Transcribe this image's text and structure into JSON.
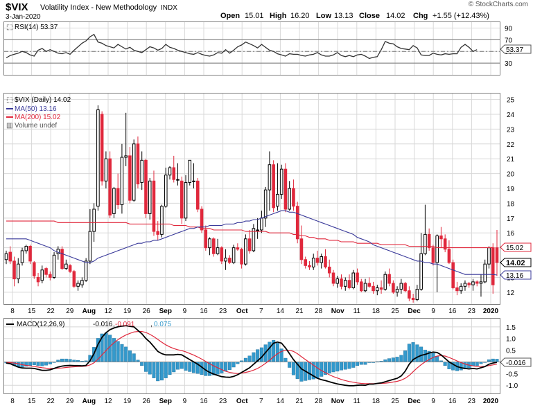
{
  "header": {
    "symbol": "$VIX",
    "name": "Volatility Index - New Methodology",
    "exchange": "INDX",
    "date": "3-Jan-2020",
    "copyright": "© StockCharts.com",
    "open_label": "Open",
    "open": "15.01",
    "high_label": "High",
    "high": "16.20",
    "low_label": "Low",
    "low": "13.13",
    "close_label": "Close",
    "close": "14.02",
    "chg_label": "Chg",
    "chg": "+1.55 (+12.43%)"
  },
  "x_axis": {
    "labels": [
      "8",
      "15",
      "22",
      "29",
      "Aug",
      "12",
      "19",
      "26",
      "Sep",
      "9",
      "16",
      "23",
      "Oct",
      "7",
      "14",
      "21",
      "28",
      "Nov",
      "11",
      "18",
      "25",
      "Dec",
      "9",
      "16",
      "23",
      "2020"
    ],
    "bold_labels": [
      "Aug",
      "Sep",
      "Oct",
      "Nov",
      "Dec",
      "2020"
    ]
  },
  "rsi": {
    "legend": "RSI(14) 53.37",
    "ticks": [
      90,
      70,
      50,
      30
    ],
    "value_badge": "53.37",
    "ylim": [
      10,
      100
    ],
    "color": "#333333",
    "values": [
      39,
      43,
      45,
      47,
      50,
      48,
      44,
      42,
      52,
      55,
      50,
      53,
      50,
      47,
      46,
      48,
      45,
      52,
      58,
      64,
      68,
      75,
      79,
      66,
      64,
      60,
      58,
      56,
      62,
      58,
      54,
      57,
      52,
      50,
      48,
      53,
      58,
      56,
      52,
      55,
      62,
      57,
      55,
      52,
      50,
      48,
      46,
      45,
      48,
      45,
      43,
      42,
      44,
      48,
      47,
      53,
      47,
      52,
      58,
      61,
      66,
      63,
      60,
      56,
      62,
      57,
      52,
      50,
      46,
      44,
      42,
      46,
      45,
      45,
      43,
      42,
      44,
      45,
      48,
      44,
      42,
      42,
      44,
      48,
      43,
      41,
      43,
      41,
      44,
      45,
      42,
      38,
      40,
      41,
      53,
      67,
      64,
      63,
      58,
      55,
      54,
      53,
      60,
      56,
      44,
      43,
      43,
      47,
      45,
      44,
      46,
      45,
      46,
      46,
      57,
      62,
      57,
      50,
      53
    ]
  },
  "price": {
    "legend_main": "$VIX (Daily) 14.02",
    "legend_ma50": "MA(50) 13.16",
    "legend_ma200": "MA(200) 15.02",
    "legend_volume": "Volume undef",
    "ticks": [
      25,
      24,
      23,
      22,
      21,
      20,
      19,
      18,
      17,
      16,
      15,
      14,
      13,
      12
    ],
    "badge_ma200": "15.02",
    "badge_close": "14.02",
    "badge_ma50": "13.16",
    "ylim": [
      11.2,
      25.4
    ],
    "up_color": "#000000",
    "down_color": "#e0283c",
    "ma50_color": "#3a3a9a",
    "ma200_color": "#e0283c"
  },
  "macd": {
    "legend_label": "MACD(12,26,9)",
    "legend_macd": "-0.016",
    "legend_signal": "-0.091",
    "legend_hist": "0.075",
    "ticks": [
      "1.5",
      "1.0",
      "0.5",
      "0.0",
      "-0.5",
      "-1.0"
    ],
    "tick_values": [
      1.5,
      1.0,
      0.5,
      0.0,
      -0.5,
      -1.0
    ],
    "value_badge": "-0.016",
    "ylim": [
      -1.35,
      1.85
    ],
    "macd_color": "#000000",
    "signal_color": "#e0283c",
    "hist_color": "#3399cc"
  },
  "chart_data": {
    "type": "candlestick",
    "title": "$VIX Volatility Index - New Methodology INDX",
    "date_range": [
      "2019-07-03",
      "2020-01-03"
    ],
    "ohlc": [
      [
        14.2,
        14.8,
        13.9,
        14.6
      ],
      [
        14.7,
        15.1,
        13.9,
        14.1
      ],
      [
        14.1,
        14.4,
        12.4,
        12.9
      ],
      [
        12.9,
        14.3,
        12.6,
        13.9
      ],
      [
        14.0,
        15.0,
        13.8,
        14.8
      ],
      [
        14.8,
        15.2,
        14.6,
        15.1
      ],
      [
        15.1,
        15.2,
        13.9,
        14.1
      ],
      [
        14.0,
        14.1,
        12.9,
        13.1
      ],
      [
        13.0,
        13.3,
        12.4,
        12.7
      ],
      [
        12.8,
        13.8,
        12.6,
        13.5
      ],
      [
        13.6,
        13.7,
        13.0,
        13.2
      ],
      [
        13.2,
        13.4,
        12.8,
        13.0
      ],
      [
        13.0,
        14.7,
        12.9,
        14.5
      ],
      [
        14.6,
        15.1,
        14.2,
        14.9
      ],
      [
        14.9,
        15.1,
        13.5,
        13.6
      ],
      [
        13.6,
        14.2,
        13.5,
        13.9
      ],
      [
        13.8,
        13.9,
        13.3,
        13.4
      ],
      [
        13.4,
        13.5,
        12.3,
        12.4
      ],
      [
        12.4,
        12.8,
        12.1,
        12.6
      ],
      [
        12.5,
        13.0,
        12.3,
        12.8
      ],
      [
        12.8,
        14.3,
        12.7,
        14.1
      ],
      [
        14.1,
        17.6,
        13.9,
        16.1
      ],
      [
        16.1,
        18.0,
        15.4,
        17.6
      ],
      [
        17.8,
        24.6,
        17.5,
        24.3
      ],
      [
        24.0,
        24.2,
        19.2,
        19.5
      ],
      [
        19.5,
        21.5,
        19.0,
        21.0
      ],
      [
        21.0,
        21.5,
        17.0,
        17.2
      ],
      [
        17.3,
        19.1,
        17.0,
        19.0
      ],
      [
        19.0,
        20.0,
        17.6,
        17.9
      ],
      [
        17.9,
        22.0,
        17.3,
        21.1
      ],
      [
        21.1,
        24.1,
        20.5,
        21.2
      ],
      [
        21.2,
        21.8,
        18.0,
        18.2
      ],
      [
        18.2,
        22.3,
        18.1,
        22.0
      ],
      [
        22.0,
        22.5,
        19.0,
        19.3
      ],
      [
        19.4,
        21.5,
        18.9,
        20.9
      ],
      [
        20.9,
        21.0,
        17.0,
        17.3
      ],
      [
        17.3,
        19.7,
        16.9,
        19.5
      ],
      [
        19.5,
        20.2,
        15.8,
        16.1
      ],
      [
        16.1,
        16.8,
        15.5,
        15.9
      ],
      [
        15.9,
        17.9,
        15.7,
        17.8
      ],
      [
        17.8,
        20.4,
        17.7,
        19.9
      ],
      [
        19.9,
        20.5,
        19.6,
        20.4
      ],
      [
        20.4,
        21.2,
        19.4,
        19.6
      ],
      [
        19.6,
        20.7,
        19.2,
        19.6
      ],
      [
        19.5,
        19.8,
        16.6,
        17.0
      ],
      [
        17.0,
        19.9,
        16.8,
        19.4
      ],
      [
        19.4,
        20.9,
        19.2,
        20.9
      ],
      [
        19.5,
        20.7,
        19.0,
        19.5
      ],
      [
        19.5,
        19.7,
        17.4,
        17.6
      ],
      [
        17.6,
        17.8,
        16.0,
        16.2
      ],
      [
        16.2,
        16.5,
        14.8,
        15.0
      ],
      [
        15.0,
        15.7,
        14.5,
        15.6
      ],
      [
        15.6,
        15.7,
        14.4,
        14.6
      ],
      [
        14.6,
        15.6,
        14.5,
        15.0
      ],
      [
        15.0,
        15.1,
        13.9,
        14.1
      ],
      [
        14.1,
        14.9,
        13.5,
        14.3
      ],
      [
        14.3,
        14.5,
        13.9,
        14.0
      ],
      [
        14.0,
        15.2,
        13.9,
        15.0
      ],
      [
        15.0,
        15.3,
        14.8,
        14.9
      ],
      [
        14.9,
        15.0,
        13.6,
        13.9
      ],
      [
        13.9,
        15.9,
        13.8,
        15.6
      ],
      [
        15.6,
        16.2,
        14.6,
        14.8
      ],
      [
        14.8,
        16.6,
        14.7,
        16.3
      ],
      [
        16.2,
        17.0,
        15.6,
        16.2
      ],
      [
        16.2,
        17.5,
        16.0,
        17.0
      ],
      [
        17.0,
        19.1,
        16.4,
        18.9
      ],
      [
        18.9,
        21.5,
        17.5,
        20.6
      ],
      [
        20.6,
        20.9,
        17.4,
        17.7
      ],
      [
        17.8,
        20.7,
        17.5,
        18.6
      ],
      [
        18.6,
        20.6,
        18.3,
        20.3
      ],
      [
        20.3,
        20.7,
        17.4,
        17.6
      ],
      [
        17.6,
        19.5,
        17.5,
        19.0
      ],
      [
        19.0,
        19.6,
        17.5,
        17.8
      ],
      [
        17.8,
        18.1,
        15.3,
        15.6
      ],
      [
        15.6,
        16.5,
        13.9,
        14.2
      ],
      [
        14.2,
        14.4,
        13.6,
        13.8
      ],
      [
        13.8,
        14.1,
        13.5,
        13.7
      ],
      [
        13.7,
        14.6,
        13.5,
        14.3
      ],
      [
        14.3,
        14.8,
        13.8,
        14.0
      ],
      [
        14.0,
        14.6,
        13.6,
        14.4
      ],
      [
        14.4,
        14.9,
        13.6,
        13.7
      ],
      [
        13.7,
        14.2,
        13.0,
        13.3
      ],
      [
        13.3,
        13.5,
        12.4,
        12.6
      ],
      [
        12.6,
        13.1,
        12.3,
        12.9
      ],
      [
        12.9,
        13.2,
        12.2,
        12.4
      ],
      [
        12.4,
        13.0,
        12.1,
        12.8
      ],
      [
        12.8,
        13.2,
        12.2,
        12.3
      ],
      [
        12.3,
        13.5,
        12.2,
        13.3
      ],
      [
        13.3,
        13.6,
        12.5,
        12.7
      ],
      [
        12.7,
        12.9,
        12.0,
        12.1
      ],
      [
        12.1,
        12.9,
        12.0,
        12.6
      ],
      [
        12.6,
        13.0,
        12.3,
        12.4
      ],
      [
        12.4,
        12.7,
        11.9,
        12.1
      ],
      [
        12.1,
        12.5,
        11.8,
        12.3
      ],
      [
        12.3,
        12.8,
        11.9,
        12.2
      ],
      [
        12.2,
        13.4,
        12.1,
        13.2
      ],
      [
        13.2,
        13.6,
        12.4,
        12.6
      ],
      [
        12.6,
        12.8,
        11.9,
        12.0
      ],
      [
        12.0,
        12.4,
        11.7,
        12.2
      ],
      [
        12.2,
        12.9,
        11.9,
        12.6
      ],
      [
        12.6,
        12.7,
        12.0,
        12.1
      ],
      [
        12.1,
        12.4,
        11.4,
        11.6
      ],
      [
        11.6,
        11.9,
        11.3,
        11.5
      ],
      [
        11.5,
        12.5,
        11.4,
        12.2
      ],
      [
        12.2,
        16.0,
        12.1,
        14.6
      ],
      [
        14.6,
        17.9,
        14.5,
        15.9
      ],
      [
        15.9,
        16.3,
        14.8,
        15.0
      ],
      [
        15.0,
        15.2,
        13.8,
        14.0
      ],
      [
        14.0,
        15.9,
        12.0,
        15.8
      ],
      [
        15.8,
        16.4,
        15.0,
        15.6
      ],
      [
        15.6,
        15.9,
        14.7,
        14.9
      ],
      [
        14.9,
        15.5,
        13.9,
        14.0
      ],
      [
        14.0,
        14.2,
        12.2,
        12.3
      ],
      [
        12.3,
        12.7,
        11.8,
        12.1
      ],
      [
        12.1,
        12.6,
        11.9,
        12.4
      ],
      [
        12.4,
        12.8,
        12.1,
        12.6
      ],
      [
        12.6,
        12.7,
        12.3,
        12.5
      ],
      [
        12.5,
        12.9,
        12.1,
        12.7
      ],
      [
        12.7,
        12.8,
        12.4,
        12.6
      ],
      [
        12.6,
        13.2,
        11.7,
        12.7
      ],
      [
        12.7,
        14.2,
        12.6,
        13.9
      ],
      [
        13.9,
        15.1,
        13.6,
        15.0
      ],
      [
        15.0,
        15.3,
        11.9,
        12.5
      ],
      [
        15.0,
        16.2,
        13.1,
        14.0
      ]
    ],
    "ma50": [
      15.6,
      15.6,
      15.6,
      15.6,
      15.6,
      15.6,
      15.5,
      15.4,
      15.3,
      15.2,
      15.1,
      15.0,
      14.8,
      14.7,
      14.6,
      14.5,
      14.4,
      14.3,
      14.2,
      14.1,
      14.0,
      14.0,
      14.1,
      14.3,
      14.4,
      14.5,
      14.6,
      14.7,
      14.8,
      14.9,
      15.0,
      15.1,
      15.2,
      15.3,
      15.3,
      15.4,
      15.4,
      15.5,
      15.5,
      15.6,
      15.7,
      15.8,
      15.9,
      16.0,
      16.1,
      16.2,
      16.3,
      16.3,
      16.4,
      16.4,
      16.4,
      16.5,
      16.5,
      16.5,
      16.5,
      16.6,
      16.6,
      16.6,
      16.7,
      16.7,
      16.8,
      16.8,
      16.9,
      16.9,
      17.0,
      17.1,
      17.2,
      17.3,
      17.4,
      17.5,
      17.5,
      17.4,
      17.4,
      17.3,
      17.2,
      17.1,
      17.0,
      16.9,
      16.8,
      16.7,
      16.6,
      16.5,
      16.4,
      16.3,
      16.2,
      16.1,
      16.0,
      15.9,
      15.7,
      15.6,
      15.5,
      15.4,
      15.2,
      15.1,
      15.0,
      14.9,
      14.8,
      14.7,
      14.6,
      14.5,
      14.4,
      14.3,
      14.2,
      14.1,
      14.1,
      14.0,
      14.0,
      13.9,
      13.9,
      13.8,
      13.7,
      13.6,
      13.5,
      13.4,
      13.3,
      13.2,
      13.2,
      13.2,
      13.2,
      13.2,
      13.2,
      13.2,
      13.2,
      13.16
    ],
    "ma200": [
      16.8,
      16.8,
      16.8,
      16.8,
      16.8,
      16.8,
      16.8,
      16.8,
      16.8,
      16.8,
      16.8,
      16.8,
      16.8,
      16.7,
      16.7,
      16.7,
      16.7,
      16.7,
      16.7,
      16.7,
      16.7,
      16.7,
      16.7,
      16.7,
      16.7,
      16.7,
      16.7,
      16.7,
      16.7,
      16.7,
      16.7,
      16.6,
      16.6,
      16.6,
      16.6,
      16.6,
      16.6,
      16.6,
      16.6,
      16.6,
      16.6,
      16.6,
      16.5,
      16.5,
      16.5,
      16.5,
      16.4,
      16.4,
      16.4,
      16.3,
      16.3,
      16.3,
      16.2,
      16.2,
      16.2,
      16.2,
      16.2,
      16.2,
      16.2,
      16.2,
      16.1,
      16.1,
      16.1,
      16.1,
      16.1,
      16.1,
      16.0,
      16.0,
      16.0,
      16.0,
      16.0,
      16.0,
      15.9,
      15.9,
      15.8,
      15.8,
      15.7,
      15.7,
      15.6,
      15.6,
      15.6,
      15.5,
      15.5,
      15.5,
      15.4,
      15.4,
      15.4,
      15.4,
      15.3,
      15.3,
      15.3,
      15.3,
      15.3,
      15.3,
      15.2,
      15.2,
      15.2,
      15.2,
      15.2,
      15.2,
      15.2,
      15.1,
      15.1,
      15.1,
      15.1,
      15.1,
      15.1,
      15.1,
      15.0,
      15.0,
      15.0,
      15.0,
      15.0,
      15.0,
      15.0,
      15.0,
      15.0,
      15.0,
      15.0,
      15.0,
      15.0,
      15.0,
      15.02
    ],
    "macd_line": [
      -0.05,
      -0.08,
      -0.15,
      -0.22,
      -0.26,
      -0.27,
      -0.27,
      -0.28,
      -0.32,
      -0.36,
      -0.36,
      -0.34,
      -0.28,
      -0.22,
      -0.18,
      -0.16,
      -0.15,
      -0.16,
      -0.16,
      -0.17,
      -0.15,
      0.05,
      0.35,
      0.75,
      1.05,
      1.25,
      1.38,
      1.45,
      1.5,
      1.53,
      1.55,
      1.52,
      1.5,
      1.35,
      1.2,
      1.0,
      0.85,
      0.65,
      0.45,
      0.35,
      0.3,
      0.3,
      0.3,
      0.32,
      0.3,
      0.2,
      0.1,
      0.0,
      -0.1,
      -0.22,
      -0.35,
      -0.45,
      -0.52,
      -0.58,
      -0.63,
      -0.65,
      -0.66,
      -0.62,
      -0.55,
      -0.45,
      -0.35,
      -0.25,
      -0.1,
      0.05,
      0.2,
      0.4,
      0.6,
      0.8,
      0.85,
      0.8,
      0.6,
      0.35,
      0.1,
      -0.1,
      -0.3,
      -0.4,
      -0.5,
      -0.6,
      -0.7,
      -0.76,
      -0.8,
      -0.85,
      -0.9,
      -0.94,
      -0.97,
      -1.0,
      -1.02,
      -1.02,
      -1.0,
      -0.99,
      -1.0,
      -0.95,
      -0.95,
      -0.92,
      -0.9,
      -0.85,
      -0.8,
      -0.75,
      -0.7,
      -0.6,
      -0.4,
      -0.1,
      0.1,
      0.2,
      0.28,
      0.32,
      0.38,
      0.42,
      0.4,
      0.3,
      0.15,
      0.0,
      -0.1,
      -0.2,
      -0.25,
      -0.28,
      -0.3,
      -0.28,
      -0.3,
      -0.25,
      -0.2,
      -0.1,
      -0.05,
      -0.016
    ],
    "signal_line": [
      -0.02,
      -0.03,
      -0.05,
      -0.08,
      -0.12,
      -0.15,
      -0.17,
      -0.2,
      -0.22,
      -0.25,
      -0.27,
      -0.28,
      -0.28,
      -0.27,
      -0.26,
      -0.24,
      -0.22,
      -0.21,
      -0.2,
      -0.19,
      -0.18,
      -0.13,
      -0.04,
      0.12,
      0.3,
      0.48,
      0.66,
      0.82,
      0.95,
      1.06,
      1.15,
      1.22,
      1.28,
      1.3,
      1.3,
      1.26,
      1.18,
      1.08,
      0.96,
      0.84,
      0.73,
      0.64,
      0.57,
      0.52,
      0.48,
      0.43,
      0.36,
      0.29,
      0.21,
      0.12,
      0.02,
      -0.08,
      -0.17,
      -0.25,
      -0.33,
      -0.4,
      -0.45,
      -0.48,
      -0.5,
      -0.48,
      -0.45,
      -0.41,
      -0.35,
      -0.28,
      -0.18,
      -0.06,
      0.07,
      0.22,
      0.35,
      0.45,
      0.5,
      0.5,
      0.45,
      0.35,
      0.22,
      0.1,
      -0.02,
      -0.14,
      -0.26,
      -0.37,
      -0.46,
      -0.55,
      -0.63,
      -0.69,
      -0.75,
      -0.8,
      -0.84,
      -0.87,
      -0.9,
      -0.92,
      -0.93,
      -0.93,
      -0.93,
      -0.93,
      -0.92,
      -0.91,
      -0.89,
      -0.86,
      -0.83,
      -0.78,
      -0.7,
      -0.58,
      -0.42,
      -0.26,
      -0.12,
      0.0,
      0.1,
      0.19,
      0.25,
      0.27,
      0.25,
      0.19,
      0.12,
      0.04,
      -0.03,
      -0.09,
      -0.14,
      -0.17,
      -0.2,
      -0.2,
      -0.19,
      -0.16,
      -0.13,
      -0.091
    ]
  }
}
